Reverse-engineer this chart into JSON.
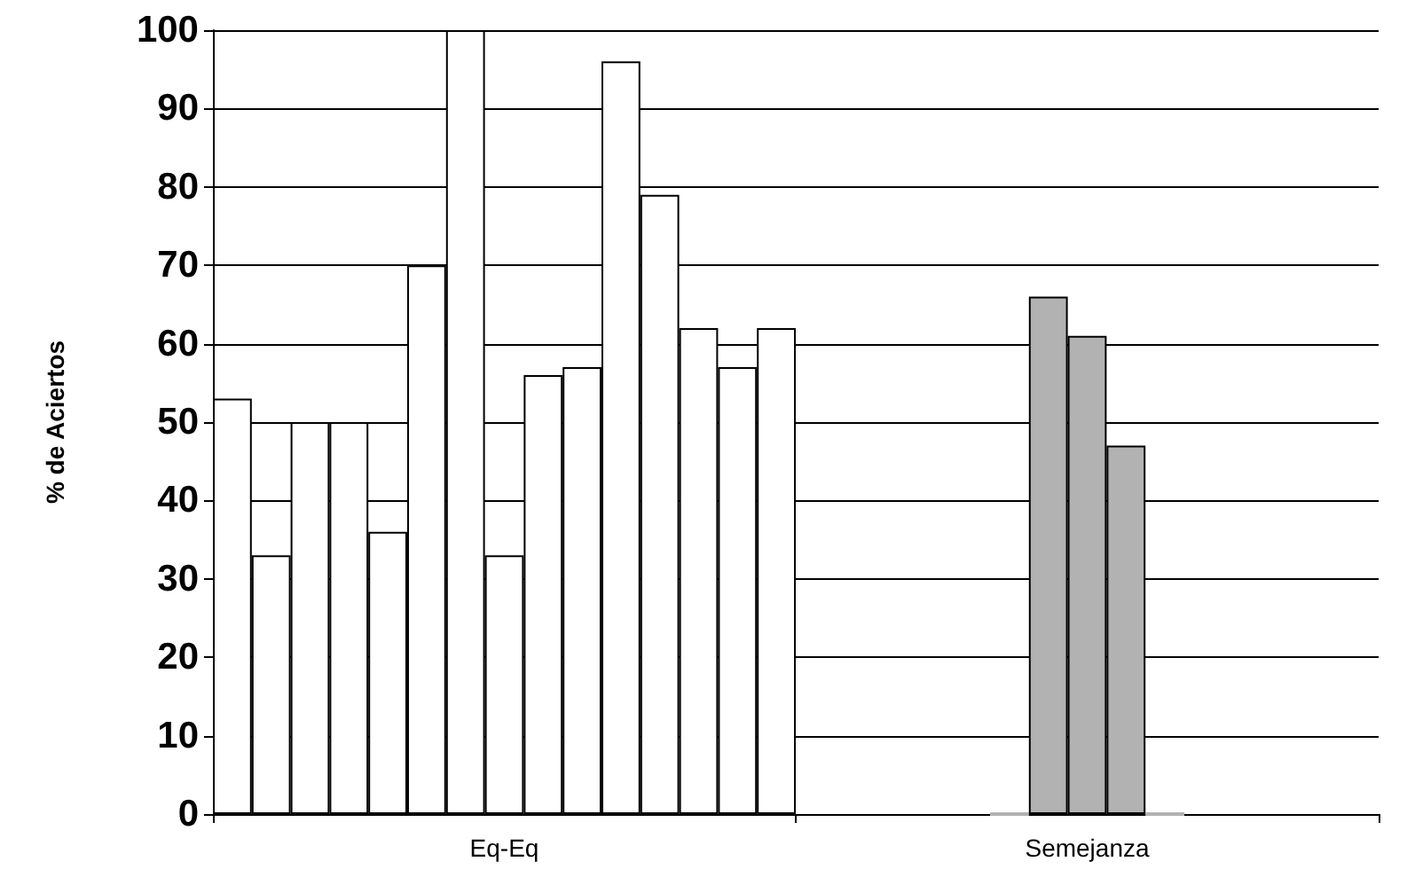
{
  "chart_data": {
    "type": "bar",
    "ylabel": "% de Aciertos",
    "categories": [
      "Eq-Eq",
      "Semejanza"
    ],
    "series": [
      {
        "values": [
          53,
          null
        ],
        "colors": [
          "#ffffff",
          null
        ]
      },
      {
        "values": [
          33,
          null
        ],
        "colors": [
          "#ffffff",
          null
        ]
      },
      {
        "values": [
          50,
          null
        ],
        "colors": [
          "#ffffff",
          null
        ]
      },
      {
        "values": [
          50,
          null
        ],
        "colors": [
          "#ffffff",
          null
        ]
      },
      {
        "values": [
          36,
          null
        ],
        "colors": [
          "#ffffff",
          null
        ]
      },
      {
        "values": [
          70,
          0
        ],
        "colors": [
          "#ffffff",
          "#b2b2b2"
        ]
      },
      {
        "values": [
          100,
          66
        ],
        "colors": [
          "#ffffff",
          "#b2b2b2"
        ]
      },
      {
        "values": [
          33,
          61
        ],
        "colors": [
          "#ffffff",
          "#b2b2b2"
        ]
      },
      {
        "values": [
          56,
          47
        ],
        "colors": [
          "#ffffff",
          "#b2b2b2"
        ]
      },
      {
        "values": [
          57,
          0
        ],
        "colors": [
          "#ffffff",
          "#b2b2b2"
        ]
      },
      {
        "values": [
          96,
          null
        ],
        "colors": [
          "#ffffff",
          null
        ]
      },
      {
        "values": [
          79,
          null
        ],
        "colors": [
          "#ffffff",
          null
        ]
      },
      {
        "values": [
          62,
          null
        ],
        "colors": [
          "#ffffff",
          null
        ]
      },
      {
        "values": [
          57,
          null
        ],
        "colors": [
          "#ffffff",
          null
        ]
      },
      {
        "values": [
          62,
          null
        ],
        "colors": [
          "#ffffff",
          null
        ]
      }
    ],
    "ylim": [
      0,
      100
    ],
    "yticks": [
      0,
      10,
      20,
      30,
      40,
      50,
      60,
      70,
      80,
      90,
      100
    ],
    "grid": "y"
  }
}
